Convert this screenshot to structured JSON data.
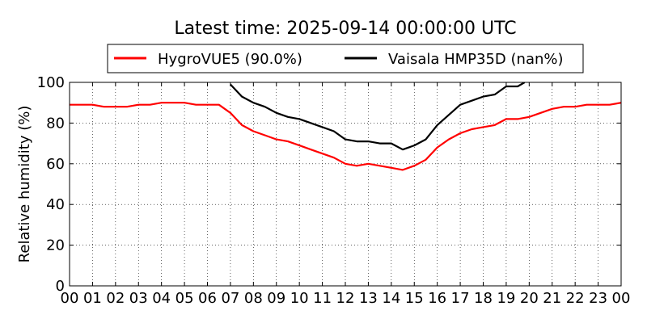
{
  "chart_data": {
    "type": "line",
    "title": "Latest time: 2025-09-14 00:00:00 UTC",
    "ylabel": "Relative humidity (%)",
    "xlabel": "",
    "ylim": [
      0,
      100
    ],
    "xlim": [
      0,
      24
    ],
    "x_tick_labels": [
      "00",
      "01",
      "02",
      "03",
      "04",
      "05",
      "06",
      "07",
      "08",
      "09",
      "10",
      "11",
      "12",
      "13",
      "14",
      "15",
      "16",
      "17",
      "18",
      "19",
      "20",
      "21",
      "22",
      "23",
      "00"
    ],
    "y_ticks": [
      0,
      20,
      40,
      60,
      80,
      100
    ],
    "grid": true,
    "legend_position": "top",
    "series": [
      {
        "name": "HygroVUE5 (90.0%)",
        "color": "#ff0000",
        "x": [
          0,
          0.5,
          1,
          1.5,
          2,
          2.5,
          3,
          3.5,
          4,
          4.5,
          5,
          5.5,
          6,
          6.5,
          7,
          7.5,
          8,
          8.5,
          9,
          9.5,
          10,
          10.5,
          11,
          11.5,
          12,
          12.5,
          13,
          13.5,
          14,
          14.5,
          15,
          15.5,
          16,
          16.5,
          17,
          17.5,
          18,
          18.5,
          19,
          19.5,
          20,
          20.5,
          21,
          21.5,
          22,
          22.5,
          23,
          23.5,
          24
        ],
        "y": [
          89,
          89,
          89,
          88,
          88,
          88,
          89,
          89,
          90,
          90,
          90,
          89,
          89,
          89,
          85,
          79,
          76,
          74,
          72,
          71,
          69,
          67,
          65,
          63,
          60,
          59,
          60,
          59,
          58,
          57,
          59,
          62,
          68,
          72,
          75,
          77,
          78,
          79,
          82,
          82,
          83,
          85,
          87,
          88,
          88,
          89,
          89,
          89,
          90
        ]
      },
      {
        "name": "Vaisala HMP35D (nan%)",
        "color": "#000000",
        "x": [
          7,
          7.5,
          8,
          8.5,
          9,
          9.5,
          10,
          10.5,
          11,
          11.5,
          12,
          12.5,
          13,
          13.5,
          14,
          14.5,
          15,
          15.5,
          16,
          16.5,
          17,
          17.5,
          18,
          18.5,
          19,
          19.5,
          19.8
        ],
        "y": [
          99,
          93,
          90,
          88,
          85,
          83,
          82,
          80,
          78,
          76,
          72,
          71,
          71,
          70,
          70,
          67,
          69,
          72,
          79,
          84,
          89,
          91,
          93,
          94,
          98,
          98,
          100
        ]
      }
    ]
  }
}
